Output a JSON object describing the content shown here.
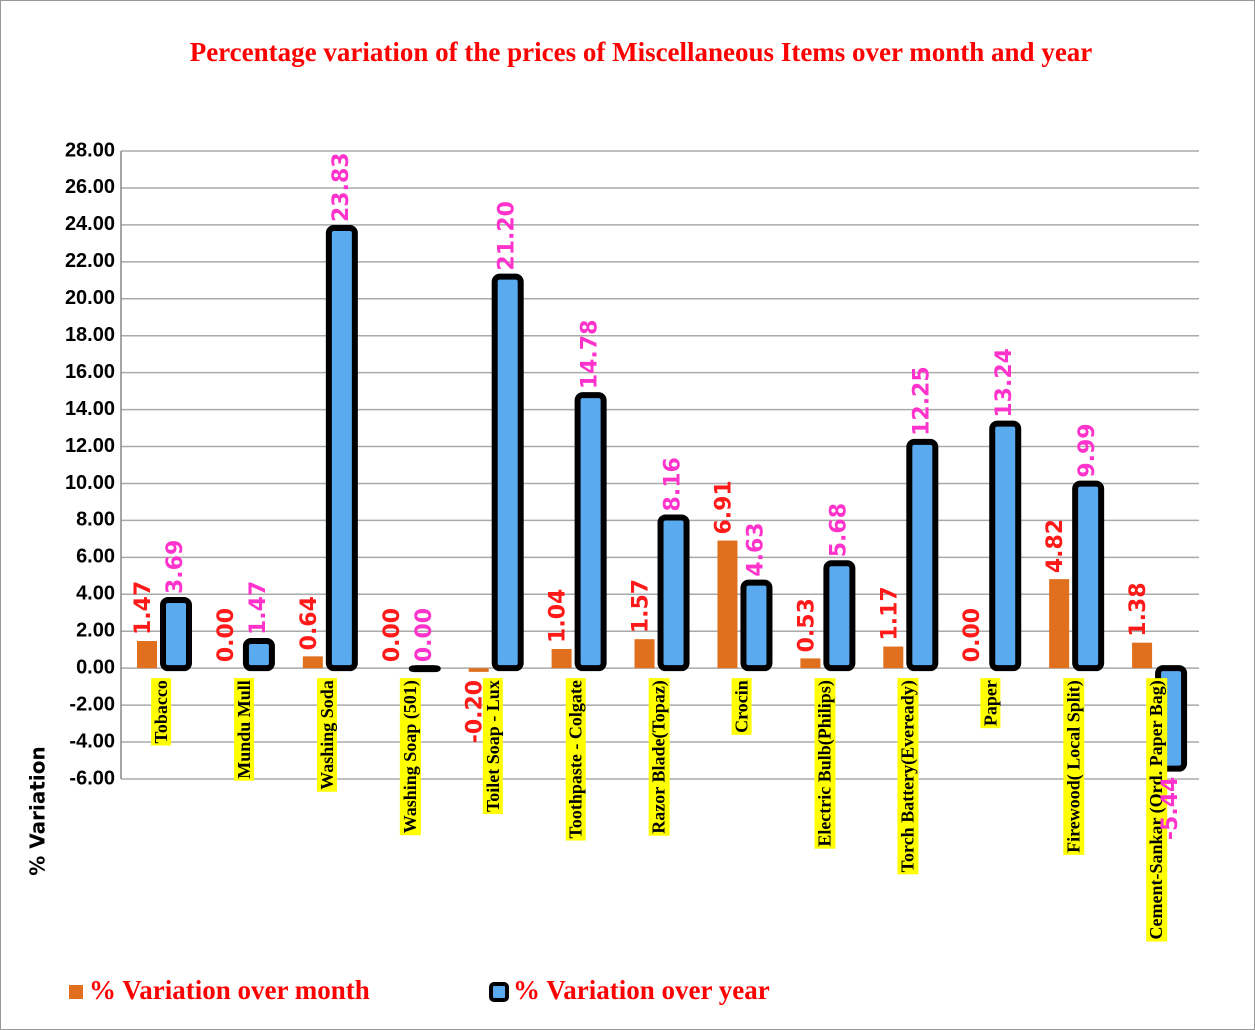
{
  "chart_data": {
    "type": "bar",
    "title": "Percentage variation of the prices of Miscellaneous Items over  month and  year",
    "y_label": "% Variation",
    "categories": [
      "Tobacco",
      "Mundu Mull",
      "Washing Soda",
      "Washing Soap (501)",
      "Toilet Soap - Lux",
      "Toothpaste - Colgate",
      "Razor Blade(Topaz)",
      "Crocin",
      "Electric Bulb(Philips)",
      "Torch Battery(Eveready)",
      "Paper",
      "Firewood( Local Split)",
      "Cement-Sankar (Ord. Paper Bag)"
    ],
    "series": [
      {
        "name": "%  Variation over month",
        "color": "#e0701e",
        "values": [
          1.47,
          0.0,
          0.64,
          0.0,
          -0.2,
          1.04,
          1.57,
          6.91,
          0.53,
          1.17,
          0.0,
          4.82,
          1.38
        ],
        "value_labels": [
          "1.47",
          "0.00",
          "0.64",
          "0.00",
          "-0.20",
          "1.04",
          "1.57",
          "6.91",
          "0.53",
          "1.17",
          "0.00",
          "4.82",
          "1.38"
        ],
        "label_color": "#ff1a1a"
      },
      {
        "name": "%  Variation over year",
        "color": "#5aaaf0",
        "values": [
          3.69,
          1.47,
          23.83,
          0.0,
          21.2,
          14.78,
          8.16,
          4.63,
          5.68,
          12.25,
          13.24,
          9.99,
          -5.44
        ],
        "value_labels": [
          "3.69",
          "1.47",
          "23.83",
          "0.00",
          "21.20",
          "14.78",
          "8.16",
          "4.63",
          "5.68",
          "12.25",
          "13.24",
          "9.99",
          "-5.44"
        ],
        "label_color": "#ff33cc"
      }
    ],
    "ylim": [
      -6,
      28
    ],
    "yticks": [
      {
        "value": -6,
        "label": "-6.00"
      },
      {
        "value": -4,
        "label": "-4.00"
      },
      {
        "value": -2,
        "label": "-2.00"
      },
      {
        "value": 0,
        "label": "0.00"
      },
      {
        "value": 2,
        "label": "2.00"
      },
      {
        "value": 4,
        "label": "4.00"
      },
      {
        "value": 6,
        "label": "6.00"
      },
      {
        "value": 8,
        "label": "8.00"
      },
      {
        "value": 10,
        "label": "10.00"
      },
      {
        "value": 12,
        "label": "12.00"
      },
      {
        "value": 14,
        "label": "14.00"
      },
      {
        "value": 16,
        "label": "16.00"
      },
      {
        "value": 18,
        "label": "18.00"
      },
      {
        "value": 20,
        "label": "20.00"
      },
      {
        "value": 22,
        "label": "22.00"
      },
      {
        "value": 24,
        "label": "24.00"
      },
      {
        "value": 26,
        "label": "26.00"
      },
      {
        "value": 28,
        "label": "28.00"
      }
    ],
    "grid": true
  }
}
